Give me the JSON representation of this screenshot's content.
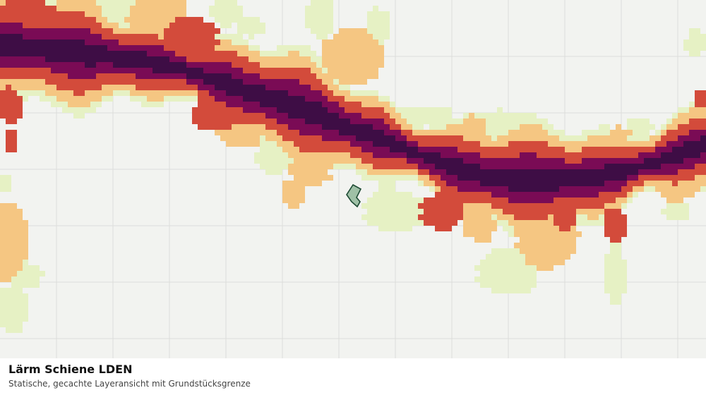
{
  "caption": {
    "title": "Lärm Schiene LDEN",
    "subtitle": "Statische, gecachte Layeransicht mit Grundstücksgrenze"
  },
  "map": {
    "background_color": "#f2f3f0",
    "grid_color": "#dcdedb",
    "noise_class_colors": {
      "class_1": "#e6f1c4",
      "class_2": "#f5c682",
      "class_3": "#d34b3b",
      "class_4": "#7a0b55",
      "class_5": "#3e0d45"
    },
    "parcel_boundary": {
      "fill": "#9fc0a6",
      "stroke": "#1d4a33"
    }
  }
}
